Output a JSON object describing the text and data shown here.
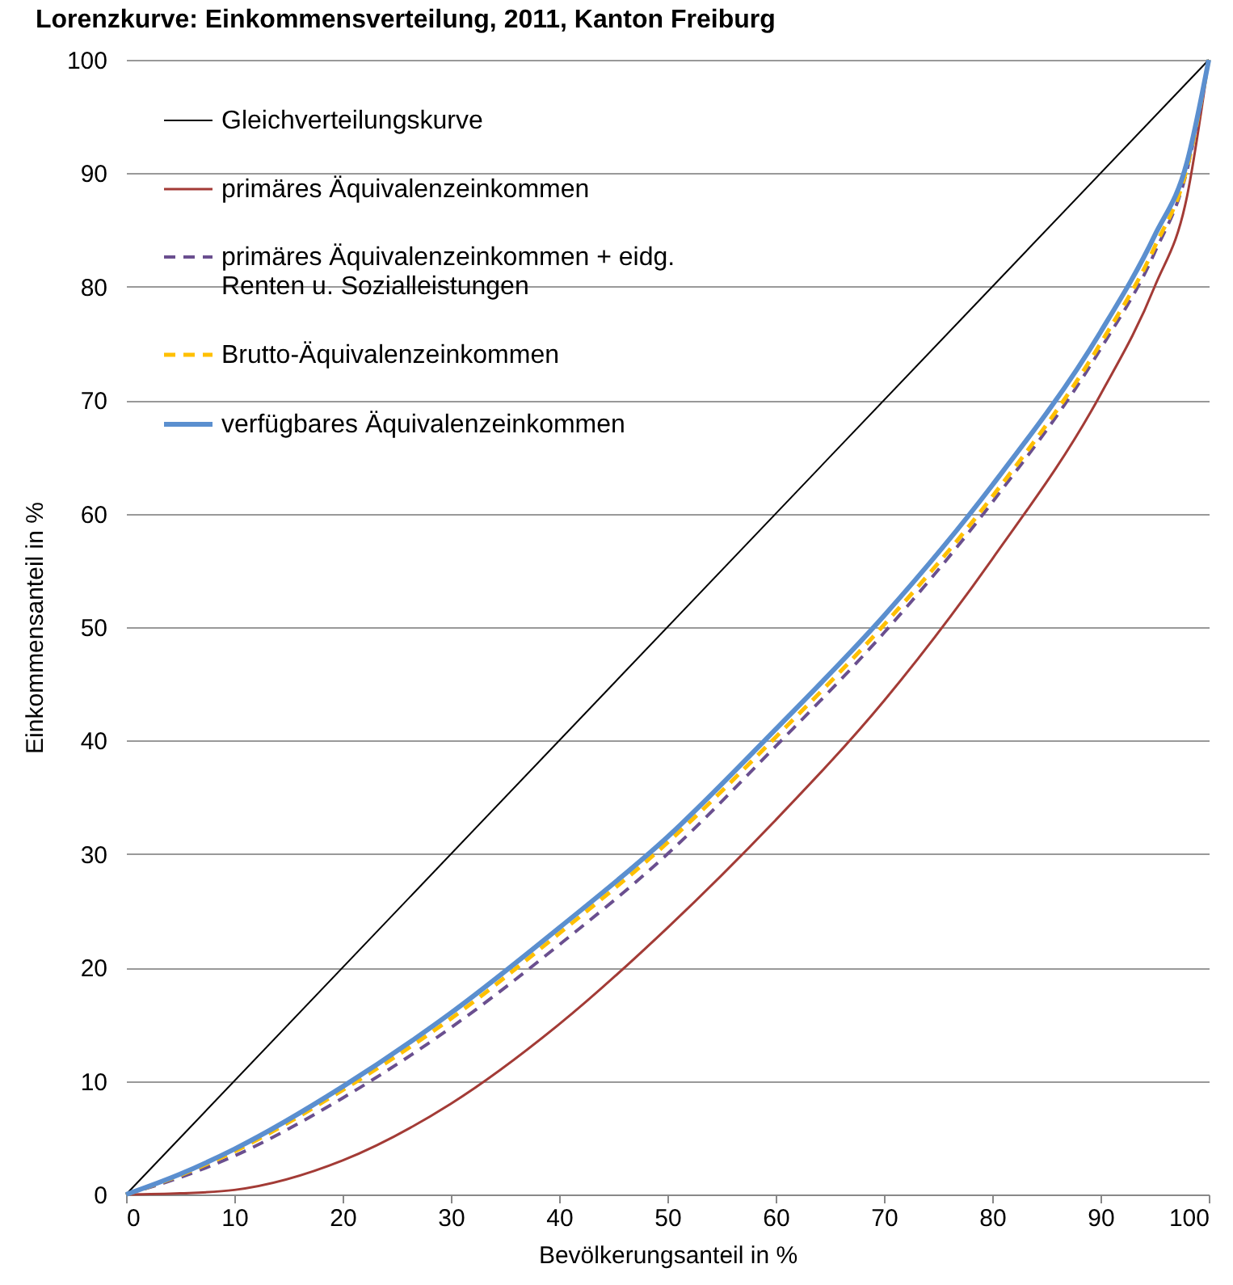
{
  "chart_data": {
    "type": "line",
    "title": "Lorenzkurve: Einkommensverteilung, 2011, Kanton Freiburg",
    "xlabel": "Bevölkerungsanteil in %",
    "ylabel": "Einkommensanteil in  %",
    "xlim": [
      0,
      100
    ],
    "ylim": [
      0,
      100
    ],
    "xticks": [
      0,
      10,
      20,
      30,
      40,
      50,
      60,
      70,
      80,
      90,
      100
    ],
    "yticks": [
      0,
      10,
      20,
      30,
      40,
      50,
      60,
      70,
      80,
      90,
      100
    ],
    "grid": "y",
    "legend": "top left",
    "series": [
      {
        "name": "Gleichverteilungskurve",
        "color": "#000000",
        "line_style": "solid",
        "x": [
          0,
          100
        ],
        "values": [
          0,
          100
        ]
      },
      {
        "name": "primäres Äquivalenzeinkommen",
        "color": "#a33b36",
        "line_style": "solid",
        "x": [
          0,
          5,
          10,
          20,
          30,
          40,
          50,
          60,
          70,
          80,
          90,
          95,
          98,
          100
        ],
        "values": [
          0,
          0.1,
          0.4,
          3,
          8,
          15,
          23.5,
          33,
          43.5,
          56,
          70.5,
          80,
          88,
          100
        ]
      },
      {
        "name": "primäres Äquivalenzeinkommen + eidg. Renten u. Sozialleistungen",
        "color": "#6a4f8f",
        "line_style": "dashed",
        "x": [
          0,
          5,
          10,
          20,
          30,
          40,
          50,
          60,
          70,
          80,
          90,
          95,
          98,
          100
        ],
        "values": [
          0,
          1.5,
          3.4,
          8.5,
          14.7,
          22,
          30,
          39.5,
          49.5,
          61,
          74.5,
          83,
          90.3,
          100
        ]
      },
      {
        "name": "Brutto-Äquivalenzeinkommen",
        "color": "#ffc000",
        "line_style": "dashed",
        "x": [
          0,
          5,
          10,
          20,
          30,
          40,
          50,
          60,
          70,
          80,
          90,
          95,
          98,
          100
        ],
        "values": [
          0,
          1.7,
          3.8,
          9.2,
          15.5,
          23,
          31,
          40.3,
          50.2,
          61.5,
          75,
          83.5,
          90.5,
          100
        ]
      },
      {
        "name": "verfügbares Äquivalenzeinkommen",
        "color": "#5b8fcf",
        "line_style": "solid",
        "x": [
          0,
          5,
          10,
          20,
          30,
          40,
          50,
          60,
          70,
          80,
          90,
          95,
          98,
          100
        ],
        "values": [
          0,
          1.8,
          4,
          9.5,
          16,
          23.5,
          31.5,
          41,
          51,
          62.5,
          76,
          84.5,
          91,
          100
        ]
      }
    ]
  }
}
